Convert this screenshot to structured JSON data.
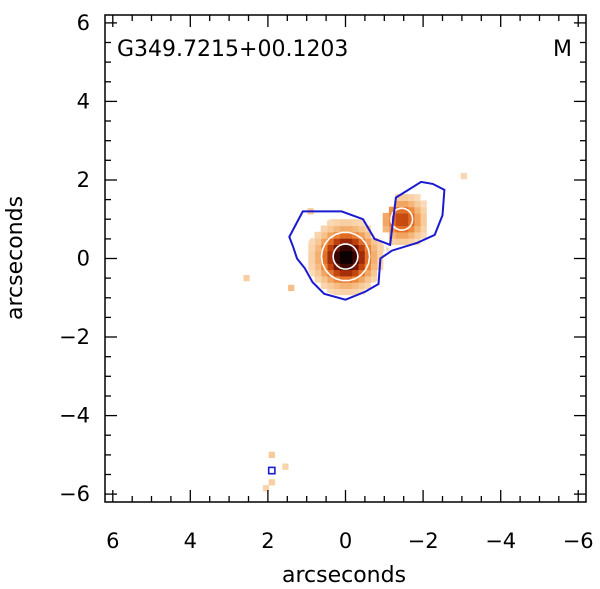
{
  "chart_data": {
    "type": "heatmap",
    "title": "G349.7215+00.1203",
    "panel_label": "M",
    "xlabel": "arcseconds",
    "ylabel": "arcseconds",
    "xlim": [
      6.2,
      -6.2
    ],
    "ylim": [
      -6.2,
      6.2
    ],
    "xticks": [
      6,
      4,
      2,
      0,
      -2,
      -4,
      -6
    ],
    "yticks": [
      -6,
      -4,
      -2,
      0,
      2,
      4,
      6
    ],
    "xtick_labels": [
      "6",
      "4",
      "2",
      "0",
      "−2",
      "−4",
      "−6"
    ],
    "ytick_labels": [
      "−6",
      "−4",
      "−2",
      "0",
      "2",
      "4",
      "6"
    ],
    "minor_tick_step": 0.5,
    "grid": false,
    "colormap": [
      "#fde9d4",
      "#f6c48e",
      "#ef8a3c",
      "#cf4f10",
      "#8e1f08",
      "#3a0603",
      "#000000"
    ],
    "sources": [
      {
        "x": 0.0,
        "y": 0.05,
        "peak": 1.0,
        "sigma": 0.42
      },
      {
        "x": -1.45,
        "y": 1.0,
        "peak": 0.55,
        "sigma": 0.33
      }
    ],
    "contour_colors": {
      "outer": "#1a1ad0",
      "inner": "#ffffff"
    },
    "outer_contour": [
      [
        1.45,
        0.55
      ],
      [
        1.1,
        1.2
      ],
      [
        0.1,
        1.2
      ],
      [
        -0.45,
        1.0
      ],
      [
        -0.75,
        0.5
      ],
      [
        -1.15,
        0.35
      ],
      [
        -1.3,
        1.55
      ],
      [
        -1.95,
        1.95
      ],
      [
        -2.25,
        1.9
      ],
      [
        -2.55,
        1.75
      ],
      [
        -2.5,
        1.1
      ],
      [
        -2.3,
        0.6
      ],
      [
        -1.85,
        0.4
      ],
      [
        -1.2,
        0.2
      ],
      [
        -0.9,
        0.0
      ],
      [
        -0.85,
        -0.65
      ],
      [
        -0.5,
        -0.85
      ],
      [
        0.0,
        -1.05
      ],
      [
        0.55,
        -0.9
      ],
      [
        0.85,
        -0.6
      ],
      [
        1.05,
        -0.25
      ],
      [
        1.25,
        0.0
      ],
      [
        1.35,
        0.3
      ]
    ],
    "inner_contours": [
      {
        "cx": 0.0,
        "cy": 0.05,
        "r": 1.05
      },
      {
        "cx": 0.0,
        "cy": 0.05,
        "r": 0.62
      },
      {
        "cx": 0.0,
        "cy": 0.05,
        "r": 0.32
      },
      {
        "cx": -1.55,
        "cy": 1.05,
        "r": 0.88
      },
      {
        "cx": -1.45,
        "cy": 1.0,
        "r": 0.28
      }
    ],
    "faint_pixels": [
      {
        "x": 2.55,
        "y": -0.5,
        "v": 0.12
      },
      {
        "x": 1.4,
        "y": -0.75,
        "v": 0.18
      },
      {
        "x": 1.9,
        "y": -5.0,
        "v": 0.14
      },
      {
        "x": 1.9,
        "y": -5.7,
        "v": 0.12
      },
      {
        "x": 1.55,
        "y": -5.3,
        "v": 0.1
      },
      {
        "x": 2.05,
        "y": -5.85,
        "v": 0.1
      },
      {
        "x": -3.05,
        "y": 2.1,
        "v": 0.08
      },
      {
        "x": 0.9,
        "y": 1.2,
        "v": 0.15
      }
    ],
    "small_contour": {
      "x": 1.9,
      "y": -5.4,
      "size": 0.16
    }
  }
}
